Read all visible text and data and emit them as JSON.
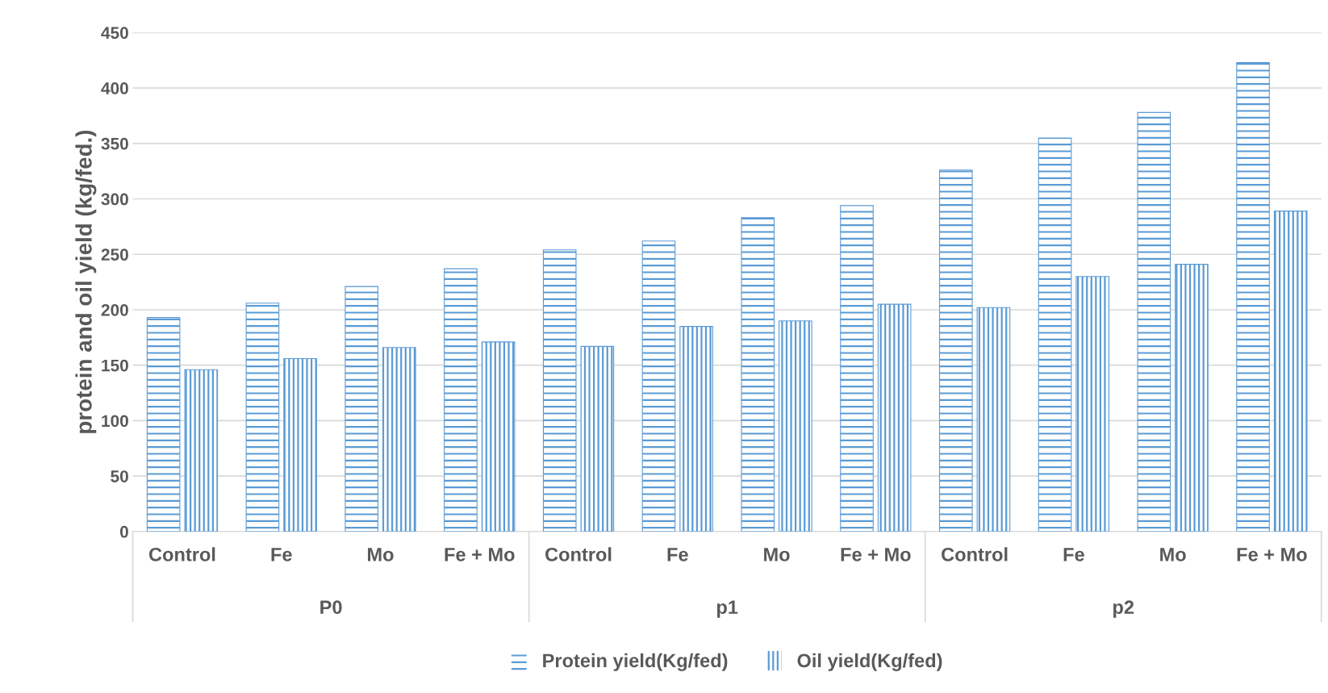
{
  "chart_data": {
    "type": "bar",
    "ylabel": "protein and oil yield (kg/fed.)",
    "categories": [
      "Control",
      "Fe",
      "Mo",
      "Fe + Mo",
      "Control",
      "Fe",
      "Mo",
      "Fe + Mo",
      "Control",
      "Fe",
      "Mo",
      "Fe + Mo"
    ],
    "series": [
      {
        "name": "Protein yield(Kg/fed)",
        "color": "#5b9bd5",
        "values": [
          193,
          206,
          221,
          237,
          254,
          262,
          283,
          294,
          326,
          355,
          378,
          423
        ]
      },
      {
        "name": "Oil yield(Kg/fed)",
        "color": "#5b9bd5",
        "values": [
          146,
          156,
          166,
          171,
          167,
          185,
          190,
          205,
          202,
          230,
          241,
          289
        ]
      }
    ],
    "annotations": [
      "P0",
      "p1",
      "p2"
    ],
    "ylim": [
      0,
      450
    ],
    "yticks": [
      0,
      50,
      100,
      150,
      200,
      250,
      300,
      350,
      400,
      450
    ],
    "grid": "y",
    "legend": "bottom"
  }
}
